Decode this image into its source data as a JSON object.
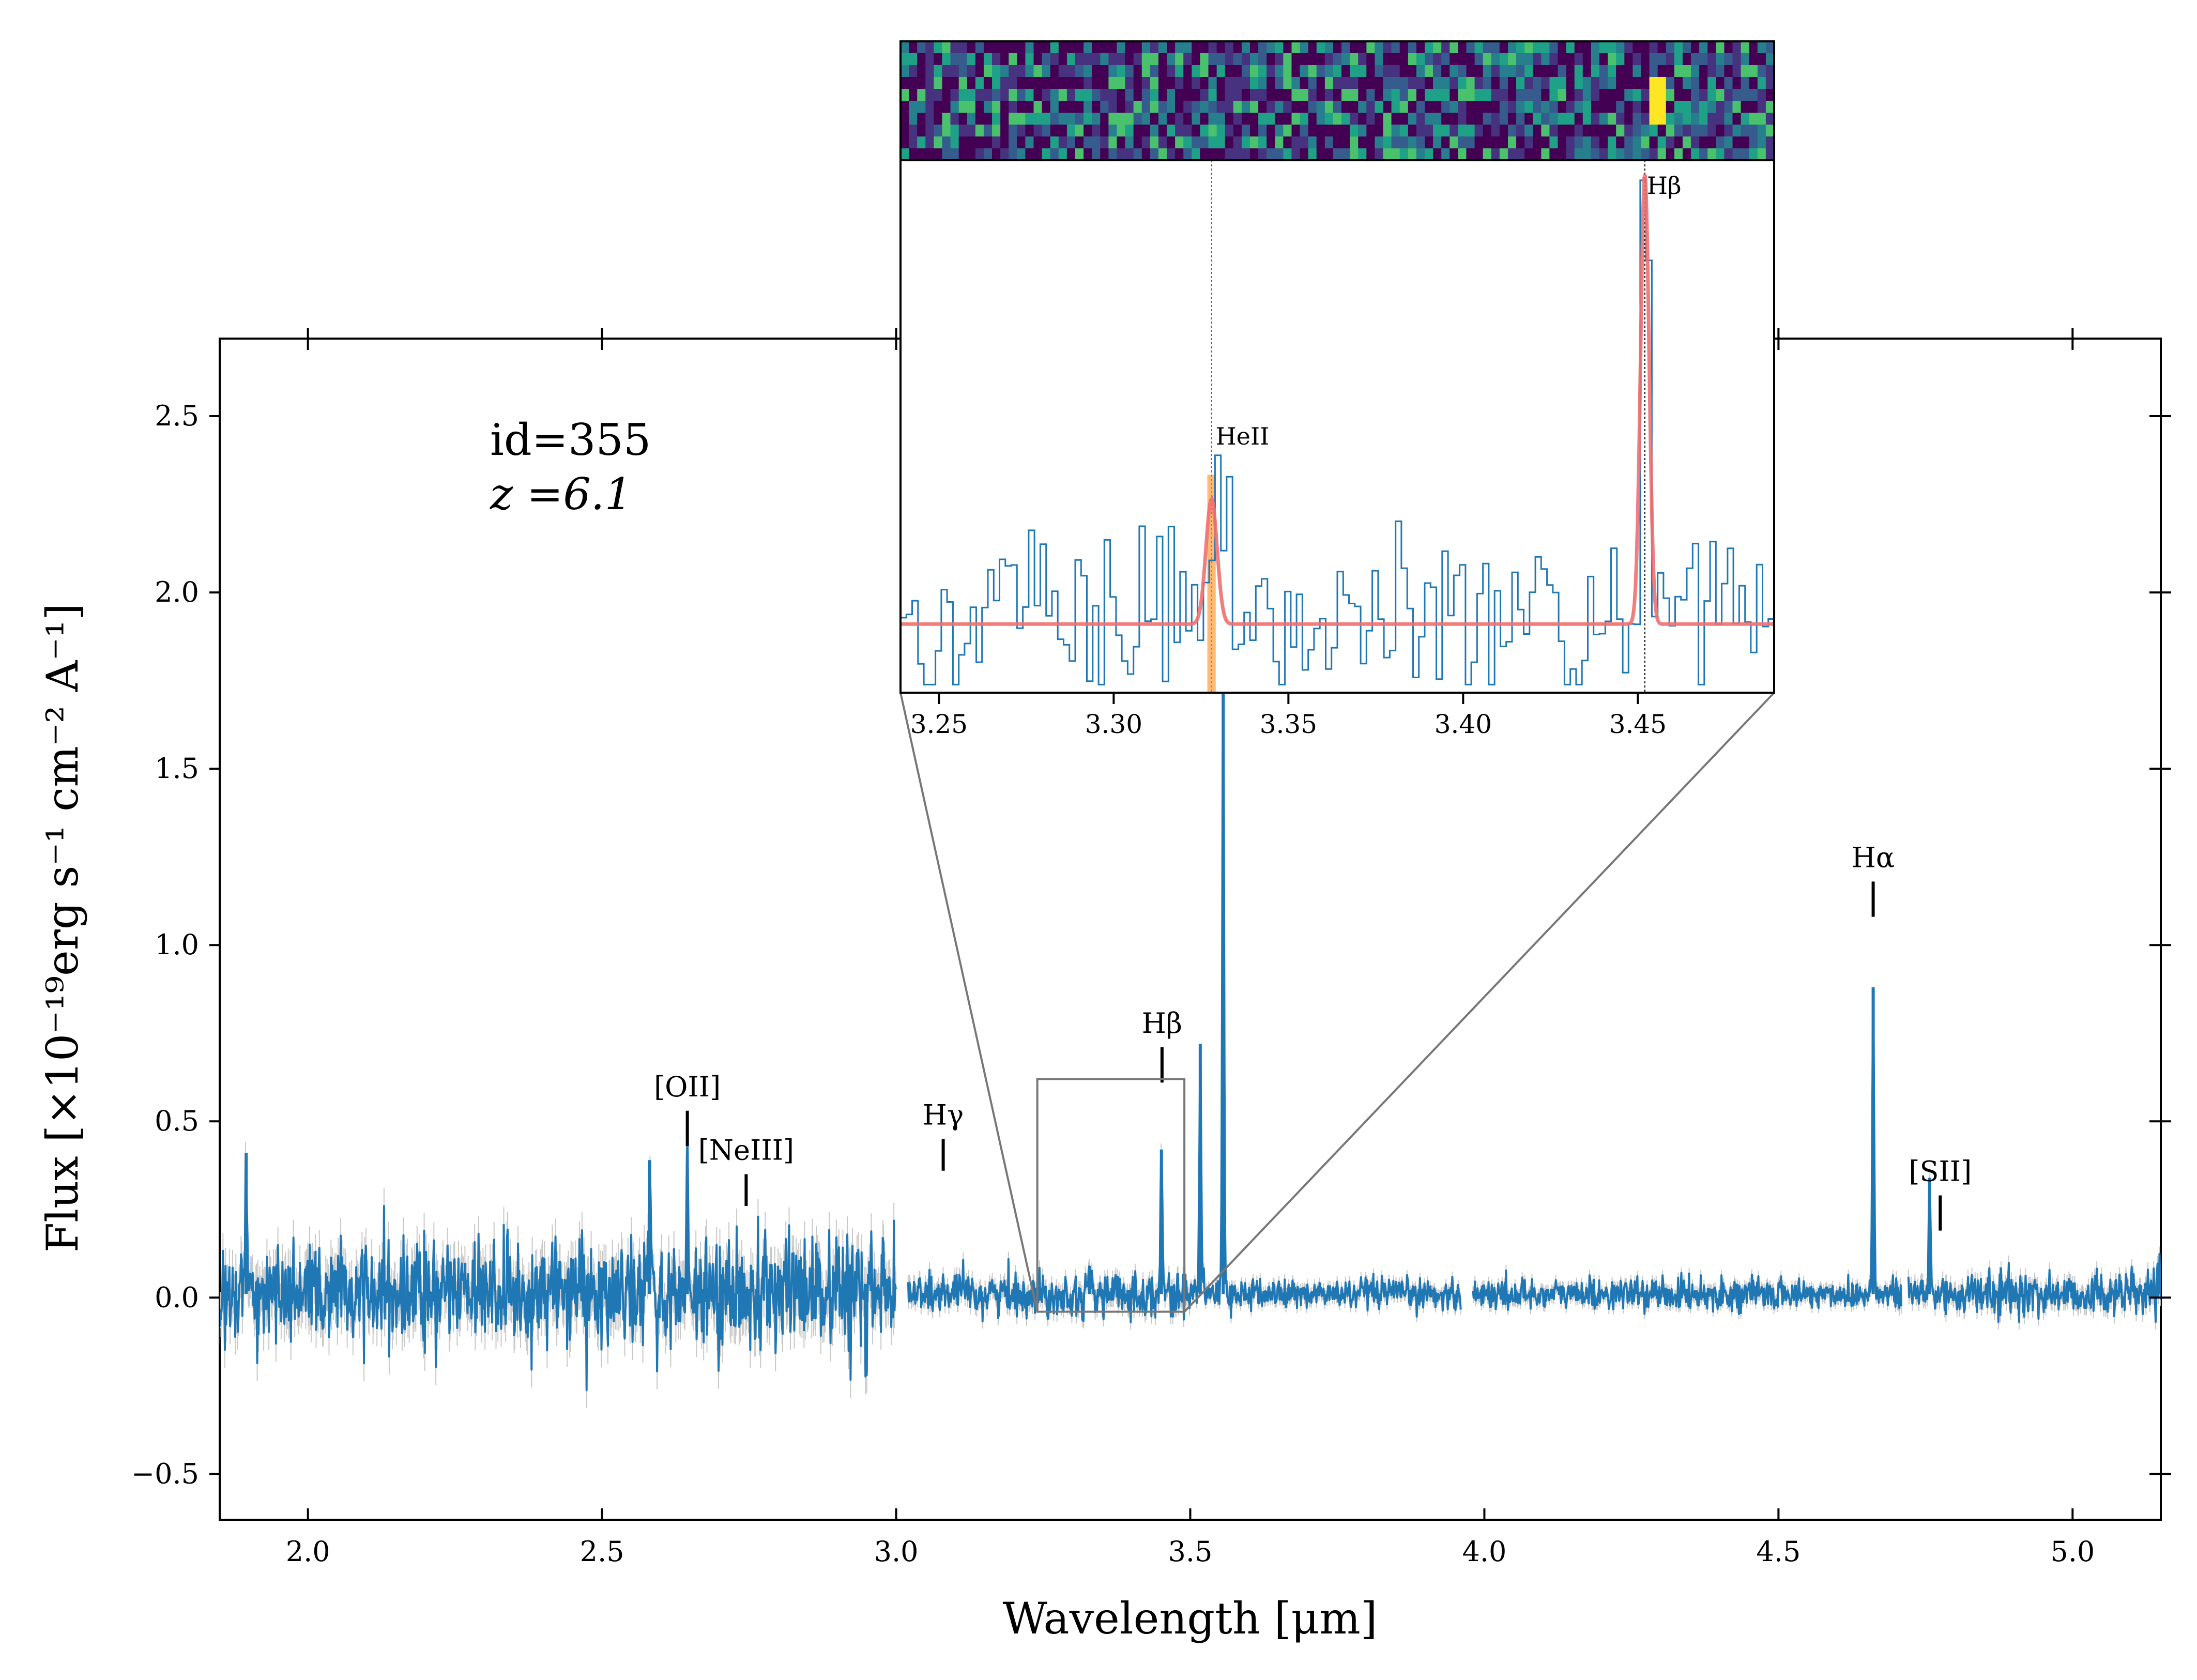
{
  "chart_data": [
    {
      "type": "line",
      "title": "",
      "xlabel": "Wavelength [μm]",
      "ylabel": "Flux [×10⁻¹⁹erg s⁻¹ cm⁻² A⁻¹]",
      "xlim": [
        1.85,
        5.15
      ],
      "ylim": [
        -0.63,
        2.72
      ],
      "x_ticks": [
        2.0,
        2.5,
        3.0,
        3.5,
        4.0,
        4.5,
        5.0
      ],
      "x_tick_labels": [
        "2.0",
        "2.5",
        "3.0",
        "3.5",
        "4.0",
        "4.5",
        "5.0"
      ],
      "y_ticks": [
        -0.5,
        0.0,
        0.5,
        1.0,
        1.5,
        2.0,
        2.5
      ],
      "y_tick_labels": [
        "−0.5",
        "0.0",
        "0.5",
        "1.0",
        "1.5",
        "2.0",
        "2.5"
      ],
      "annotations": {
        "id_text": "id=355",
        "z_text": "z =6.1"
      },
      "series_color": "#1f77b4",
      "error_color": "#c8c8c8",
      "gap_ranges": [
        [
          3.0,
          3.02
        ],
        [
          3.96,
          3.98
        ],
        [
          4.71,
          4.72
        ]
      ],
      "noise_levels": [
        {
          "from": 1.85,
          "to": 3.0,
          "sigma": 0.085
        },
        {
          "from": 3.0,
          "to": 3.5,
          "sigma": 0.035
        },
        {
          "from": 3.5,
          "to": 4.7,
          "sigma": 0.025
        },
        {
          "from": 4.7,
          "to": 5.15,
          "sigma": 0.035
        }
      ],
      "emission_peaks": [
        {
          "x": 1.895,
          "y": 0.41
        },
        {
          "x": 2.581,
          "y": 0.39
        },
        {
          "x": 2.645,
          "y": 0.34
        },
        {
          "x": 3.329,
          "y": 0.09
        },
        {
          "x": 3.451,
          "y": 0.42
        },
        {
          "x": 3.517,
          "y": 0.72
        },
        {
          "x": 3.556,
          "y": 1.78
        },
        {
          "x": 4.661,
          "y": 0.88
        },
        {
          "x": 4.757,
          "y": 0.34
        }
      ],
      "line_markers": [
        {
          "label": "[OII]",
          "x": 2.645,
          "y_bottom": 0.43,
          "y_top": 0.53
        },
        {
          "label": "[NeIII]",
          "x": 2.745,
          "y_bottom": 0.26,
          "y_top": 0.35
        },
        {
          "label": "Hγ",
          "x": 3.08,
          "y_bottom": 0.36,
          "y_top": 0.45
        },
        {
          "label": "Hβ",
          "x": 3.452,
          "y_bottom": 0.61,
          "y_top": 0.71
        },
        {
          "label": "Hα",
          "x": 4.661,
          "y_bottom": 1.08,
          "y_top": 1.18
        },
        {
          "label": "[SII]",
          "x": 4.775,
          "y_bottom": 0.19,
          "y_top": 0.29
        }
      ],
      "zoom_box": {
        "x_range": [
          3.24,
          3.49
        ],
        "y_range": [
          -0.04,
          0.62
        ]
      }
    },
    {
      "type": "line",
      "title": "",
      "xlabel": "",
      "ylabel": "",
      "xlim": [
        3.239,
        3.489
      ],
      "ylim": [
        -0.04,
        0.62
      ],
      "x_ticks": [
        3.25,
        3.3,
        3.35,
        3.4,
        3.45
      ],
      "x_tick_labels": [
        "3.25",
        "3.30",
        "3.35",
        "3.40",
        "3.45"
      ],
      "line_markers": [
        {
          "label": "HeII",
          "x": 3.328,
          "color": "#d62728"
        },
        {
          "label": "Hβ",
          "x": 3.452,
          "color": "#000000"
        }
      ],
      "fit_baseline": 0.045,
      "fit_peaks": [
        {
          "x": 3.328,
          "amp": 0.155,
          "width": 0.0016
        },
        {
          "x": 3.452,
          "amp": 0.56,
          "width": 0.0012
        }
      ],
      "step_color": "#1f77b4",
      "fit_color": "#f07070",
      "highlight_color": "#ff8c1a",
      "image_strip_colormap": "viridis"
    }
  ]
}
